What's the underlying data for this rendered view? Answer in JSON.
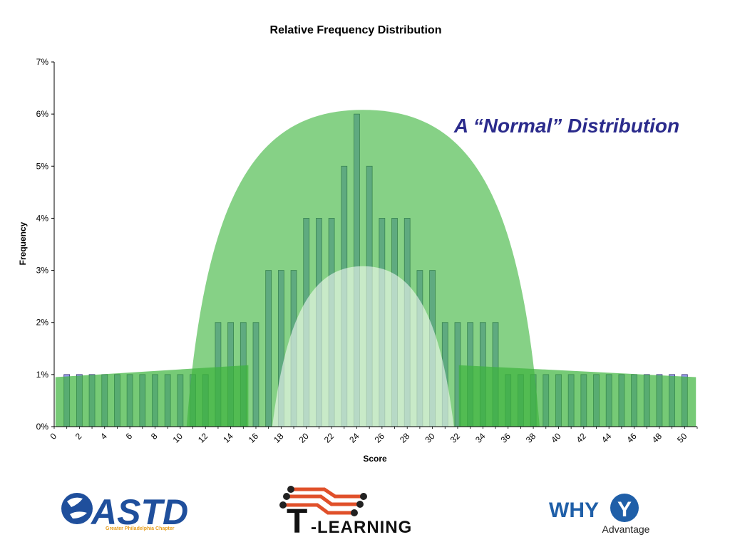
{
  "chart_data": {
    "type": "bar",
    "title": "Relative Frequency Distribution",
    "xlabel": "Score",
    "ylabel": "Frequency",
    "annotation": "A “Normal” Distribution",
    "x": [
      1,
      2,
      3,
      4,
      5,
      6,
      7,
      8,
      9,
      10,
      11,
      12,
      13,
      14,
      15,
      16,
      17,
      18,
      19,
      20,
      21,
      22,
      23,
      24,
      25,
      26,
      27,
      28,
      29,
      30,
      31,
      32,
      33,
      34,
      35,
      36,
      37,
      38,
      39,
      40,
      41,
      42,
      43,
      44,
      45,
      46,
      47,
      48,
      49,
      50
    ],
    "values": [
      1,
      1,
      1,
      1,
      1,
      1,
      1,
      1,
      1,
      1,
      1,
      1,
      2,
      2,
      2,
      2,
      3,
      3,
      3,
      4,
      4,
      4,
      5,
      6,
      5,
      4,
      4,
      4,
      3,
      3,
      2,
      2,
      2,
      2,
      2,
      1,
      1,
      1,
      1,
      1,
      1,
      1,
      1,
      1,
      1,
      1,
      1,
      1,
      1,
      1
    ],
    "xlim": [
      0,
      51
    ],
    "ylim": [
      0,
      7
    ],
    "x_ticks": [
      "0",
      "2",
      "4",
      "6",
      "8",
      "10",
      "12",
      "14",
      "16",
      "18",
      "20",
      "22",
      "24",
      "26",
      "28",
      "30",
      "32",
      "34",
      "36",
      "38",
      "40",
      "42",
      "44",
      "46",
      "48",
      "50"
    ],
    "y_ticks": [
      "0%",
      "1%",
      "2%",
      "3%",
      "4%",
      "5%",
      "6%",
      "7%"
    ],
    "grid": false,
    "legend": "none",
    "colors": {
      "bar": "#9a9af0",
      "overlay": "#3cb43c",
      "annotation": "#2b2b8c",
      "axis": "#000000"
    }
  },
  "logos": {
    "astd": {
      "text": "ASTD",
      "subtitle": "Greater Philadelphia Chapter",
      "color": "#1f4f9c",
      "sub_color": "#e8a020"
    },
    "tlearning": {
      "letter": "T",
      "text": "-LEARNING",
      "circuit_color": "#e0502a"
    },
    "whyy": {
      "text": "WHY",
      "badge": "Y",
      "subtitle": "Advantage",
      "color": "#1f5fa8"
    }
  }
}
